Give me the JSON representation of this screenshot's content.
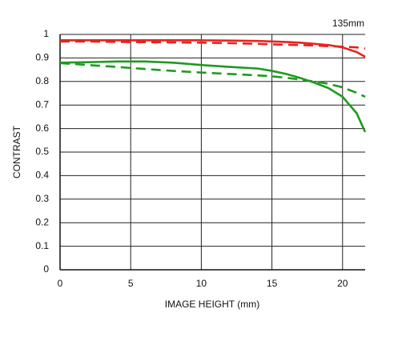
{
  "chart_data": {
    "type": "line",
    "title": "135mm",
    "x_label": "IMAGE HEIGHT (mm)",
    "y_label": "CONTRAST",
    "x": [
      0,
      2,
      4,
      6,
      8,
      10,
      12,
      14,
      15,
      16,
      17,
      18,
      19,
      20,
      21,
      21.6
    ],
    "series": [
      {
        "color": "#e8231e",
        "dash": false,
        "values": [
          0.975,
          0.975,
          0.975,
          0.975,
          0.975,
          0.975,
          0.974,
          0.972,
          0.97,
          0.968,
          0.965,
          0.96,
          0.955,
          0.945,
          0.925,
          0.905
        ]
      },
      {
        "color": "#e8231e",
        "dash": true,
        "values": [
          0.97,
          0.97,
          0.968,
          0.967,
          0.966,
          0.965,
          0.963,
          0.96,
          0.958,
          0.956,
          0.955,
          0.953,
          0.95,
          0.948,
          0.945,
          0.94
        ]
      },
      {
        "color": "#1e9a1e",
        "dash": false,
        "values": [
          0.88,
          0.882,
          0.885,
          0.885,
          0.88,
          0.87,
          0.862,
          0.855,
          0.845,
          0.832,
          0.815,
          0.795,
          0.772,
          0.735,
          0.665,
          0.585
        ]
      },
      {
        "color": "#1e9a1e",
        "dash": true,
        "values": [
          0.878,
          0.87,
          0.862,
          0.853,
          0.845,
          0.838,
          0.832,
          0.826,
          0.822,
          0.816,
          0.808,
          0.8,
          0.79,
          0.775,
          0.752,
          0.735
        ]
      }
    ],
    "xlim": [
      0,
      21.6
    ],
    "ylim": [
      0,
      1
    ],
    "xticks": [
      0,
      5,
      10,
      15,
      20
    ],
    "yticks": [
      0,
      0.1,
      0.2,
      0.3,
      0.4,
      0.5,
      0.6,
      0.7,
      0.8,
      0.9,
      1
    ],
    "grid": true
  }
}
